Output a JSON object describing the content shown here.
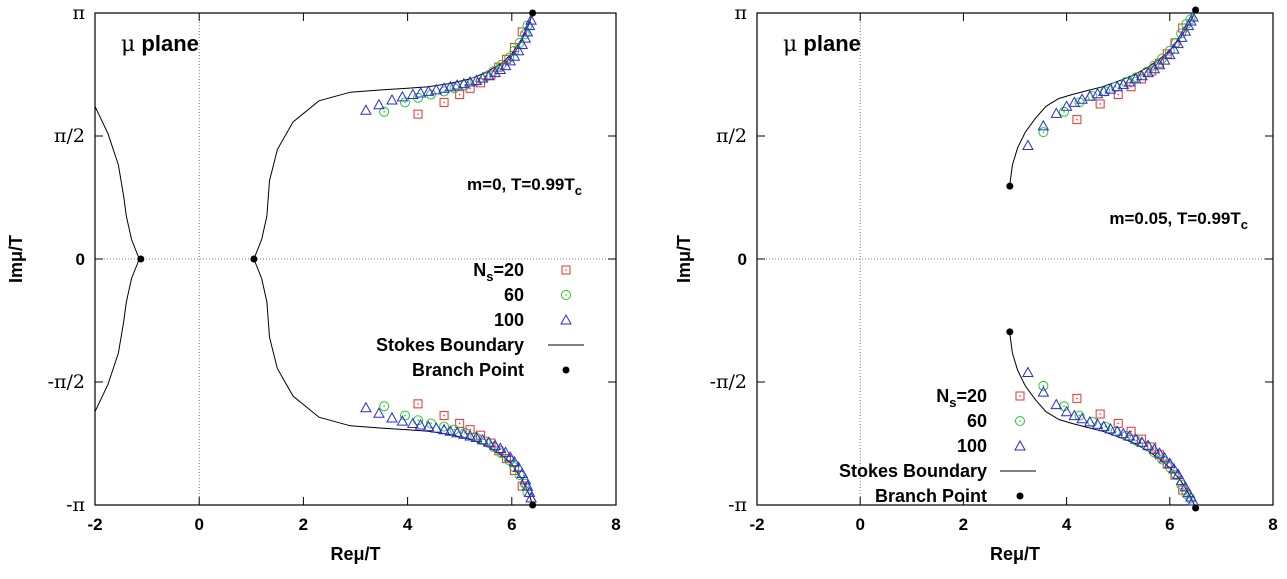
{
  "chart_data": [
    {
      "type": "scatter",
      "corner_label": {
        "greek": "μ",
        "text": " plane"
      },
      "annotation": {
        "text": "m=0, T=0.99T",
        "sub": "c"
      },
      "xlabel": "Reμ/T",
      "ylabel": "Imμ/T",
      "xlim": [
        -2,
        8
      ],
      "ylim": [
        -3.14159,
        3.14159
      ],
      "xticks": [
        {
          "v": -2,
          "label": "-2"
        },
        {
          "v": 0,
          "label": "0"
        },
        {
          "v": 2,
          "label": "2"
        },
        {
          "v": 4,
          "label": "4"
        },
        {
          "v": 6,
          "label": "6"
        },
        {
          "v": 8,
          "label": "8"
        }
      ],
      "yticks": [
        {
          "v": -3.14159,
          "label": "-π"
        },
        {
          "v": -1.5708,
          "label": "-π/2"
        },
        {
          "v": 0,
          "label": "0"
        },
        {
          "v": 1.5708,
          "label": "π/2"
        },
        {
          "v": 3.14159,
          "label": "π"
        }
      ],
      "legend_placement": "right",
      "legend": [
        {
          "label": "N",
          "sub": "s",
          "suffix": "=20",
          "marker": "square",
          "color": "#e8312b"
        },
        {
          "label": "60",
          "marker": "circle",
          "color": "#22cc22"
        },
        {
          "label": "100",
          "marker": "triangle",
          "color": "#2a2ad8"
        },
        {
          "label": "Stokes Boundary",
          "marker": "line",
          "color": "#000000"
        },
        {
          "label": "Branch Point",
          "marker": "dot",
          "color": "#000000"
        }
      ],
      "series": [
        {
          "name": "20",
          "marker": "square",
          "color": "#e8312b",
          "x": [
            4.2,
            4.7,
            5.0,
            5.2,
            5.4,
            5.6,
            5.75,
            5.9,
            6.05,
            6.2
          ],
          "y": [
            1.85,
            2.0,
            2.1,
            2.18,
            2.25,
            2.35,
            2.45,
            2.55,
            2.7,
            2.9
          ]
        },
        {
          "name": "60",
          "marker": "circle",
          "color": "#22cc22",
          "x": [
            3.55,
            3.95,
            4.2,
            4.45,
            4.7,
            4.9,
            5.1,
            5.3,
            5.5,
            5.65,
            5.8,
            5.95,
            6.05,
            6.15,
            6.25,
            6.3
          ],
          "y": [
            1.88,
            2.0,
            2.06,
            2.1,
            2.14,
            2.18,
            2.22,
            2.27,
            2.33,
            2.4,
            2.48,
            2.57,
            2.66,
            2.76,
            2.87,
            2.98
          ]
        },
        {
          "name": "100",
          "marker": "triangle",
          "color": "#2a2ad8",
          "x": [
            3.2,
            3.45,
            3.7,
            3.9,
            4.1,
            4.25,
            4.4,
            4.55,
            4.7,
            4.82,
            4.95,
            5.08,
            5.2,
            5.32,
            5.44,
            5.56,
            5.68,
            5.78,
            5.88,
            5.97,
            6.05,
            6.13,
            6.2,
            6.26,
            6.3,
            6.34,
            6.37
          ],
          "y": [
            1.9,
            1.97,
            2.03,
            2.07,
            2.1,
            2.12,
            2.14,
            2.16,
            2.18,
            2.2,
            2.22,
            2.24,
            2.26,
            2.28,
            2.31,
            2.34,
            2.38,
            2.42,
            2.47,
            2.53,
            2.59,
            2.66,
            2.74,
            2.82,
            2.9,
            2.98,
            3.05
          ]
        }
      ],
      "stokes_boundary": [
        {
          "x": [
            -2,
            -1.75,
            -1.55,
            -1.45,
            -1.4
          ],
          "y": [
            1.95,
            1.6,
            1.2,
            0.8,
            0.55
          ]
        },
        {
          "x": [
            -1.4,
            -1.3,
            -1.15
          ],
          "y": [
            0.55,
            0.25,
            0
          ]
        },
        {
          "x": [
            1.05,
            1.2,
            1.3,
            1.35,
            1.5,
            1.8,
            2.3,
            2.9,
            3.5,
            4.0,
            4.4,
            4.8,
            5.2,
            5.5,
            5.8,
            6.0,
            6.2,
            6.33,
            6.4
          ],
          "y": [
            0,
            0.25,
            0.55,
            1.0,
            1.4,
            1.75,
            2.02,
            2.13,
            2.16,
            2.18,
            2.2,
            2.24,
            2.3,
            2.38,
            2.5,
            2.62,
            2.82,
            3.0,
            3.14159
          ]
        }
      ],
      "branch_points": {
        "x": [
          -1.12,
          1.05,
          6.4,
          6.4
        ],
        "y": [
          0,
          0,
          3.14159,
          -3.14159
        ]
      }
    },
    {
      "type": "scatter",
      "corner_label": {
        "greek": "μ",
        "text": " plane"
      },
      "annotation": {
        "text": "m=0.05, T=0.99T",
        "sub": "c"
      },
      "xlabel": "Reμ/T",
      "ylabel": "Imμ/T",
      "xlim": [
        -2,
        8
      ],
      "ylim": [
        -3.14159,
        3.14159
      ],
      "xticks": [
        {
          "v": -2,
          "label": "-2"
        },
        {
          "v": 0,
          "label": "0"
        },
        {
          "v": 2,
          "label": "2"
        },
        {
          "v": 4,
          "label": "4"
        },
        {
          "v": 6,
          "label": "6"
        },
        {
          "v": 8,
          "label": "8"
        }
      ],
      "yticks": [
        {
          "v": -3.14159,
          "label": "-π"
        },
        {
          "v": -1.5708,
          "label": "-π/2"
        },
        {
          "v": 0,
          "label": "0"
        },
        {
          "v": 1.5708,
          "label": "π/2"
        },
        {
          "v": 3.14159,
          "label": "π"
        }
      ],
      "legend_placement": "bottom-right",
      "legend": [
        {
          "label": "N",
          "sub": "s",
          "suffix": "=20",
          "marker": "square",
          "color": "#e8312b"
        },
        {
          "label": "60",
          "marker": "circle",
          "color": "#22cc22"
        },
        {
          "label": "100",
          "marker": "triangle",
          "color": "#2a2ad8"
        },
        {
          "label": "Stokes Boundary",
          "marker": "line",
          "color": "#000000"
        },
        {
          "label": "Branch Point",
          "marker": "dot",
          "color": "#000000"
        }
      ],
      "series": [
        {
          "name": "20",
          "marker": "square",
          "color": "#e8312b",
          "x": [
            4.2,
            4.65,
            5.0,
            5.25,
            5.45,
            5.65,
            5.8,
            5.95,
            6.1,
            6.25
          ],
          "y": [
            1.78,
            1.98,
            2.1,
            2.2,
            2.3,
            2.4,
            2.5,
            2.62,
            2.76,
            2.95
          ]
        },
        {
          "name": "60",
          "marker": "circle",
          "color": "#22cc22",
          "x": [
            3.55,
            3.95,
            4.25,
            4.5,
            4.75,
            4.95,
            5.15,
            5.35,
            5.55,
            5.7,
            5.85,
            6.0,
            6.12,
            6.22,
            6.32,
            6.4
          ],
          "y": [
            1.62,
            1.88,
            2.0,
            2.08,
            2.14,
            2.2,
            2.26,
            2.32,
            2.39,
            2.47,
            2.56,
            2.66,
            2.76,
            2.88,
            3.0,
            3.06
          ]
        },
        {
          "name": "100",
          "marker": "triangle",
          "color": "#2a2ad8",
          "x": [
            3.25,
            3.55,
            3.8,
            4.0,
            4.15,
            4.3,
            4.45,
            4.6,
            4.72,
            4.85,
            4.98,
            5.1,
            5.22,
            5.34,
            5.46,
            5.58,
            5.7,
            5.8,
            5.9,
            6.0,
            6.08,
            6.16,
            6.23,
            6.3,
            6.36,
            6.41,
            6.45
          ],
          "y": [
            1.45,
            1.7,
            1.86,
            1.95,
            2.0,
            2.04,
            2.08,
            2.11,
            2.14,
            2.17,
            2.2,
            2.23,
            2.26,
            2.3,
            2.34,
            2.38,
            2.43,
            2.48,
            2.54,
            2.61,
            2.68,
            2.75,
            2.83,
            2.91,
            2.98,
            3.04,
            3.09
          ]
        }
      ],
      "stokes_boundary": [
        {
          "x": [
            2.9,
            2.95,
            3.05,
            3.2,
            3.4,
            3.6,
            3.85,
            4.1,
            4.4,
            4.7,
            5.0,
            5.3,
            5.6,
            5.85,
            6.05,
            6.22,
            6.35,
            6.45,
            6.5
          ],
          "y": [
            0.95,
            1.2,
            1.42,
            1.62,
            1.8,
            1.95,
            2.05,
            2.1,
            2.15,
            2.2,
            2.27,
            2.35,
            2.46,
            2.58,
            2.7,
            2.84,
            2.98,
            3.1,
            3.18
          ]
        }
      ],
      "branch_points": {
        "x": [
          2.9,
          6.5,
          2.9,
          6.5
        ],
        "y": [
          0.93,
          3.18,
          -0.93,
          -3.18
        ]
      }
    }
  ]
}
